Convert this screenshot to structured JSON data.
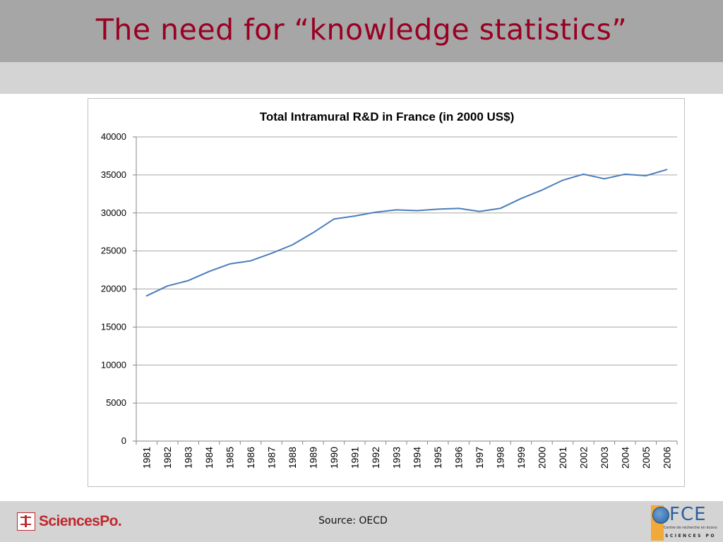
{
  "slide": {
    "title": "The need for “knowledge statistics”",
    "source": "Source: OECD"
  },
  "logos": {
    "sciencespo": "SciencesPo.",
    "ofce_letters": "FCE",
    "ofce_desc": "Centre de recherche en économie de",
    "ofce_sp": "SCIENCES PO"
  },
  "colors": {
    "title": "#990022",
    "line": "#4a7ebb",
    "brand_red": "#c0282d"
  },
  "chart_data": {
    "type": "line",
    "title": "Total Intramural R&D in France (in 2000 US$)",
    "xlabel": "",
    "ylabel": "",
    "ylim": [
      0,
      40000
    ],
    "yticks": [
      0,
      5000,
      10000,
      15000,
      20000,
      25000,
      30000,
      35000,
      40000
    ],
    "grid": true,
    "legend": "none",
    "categories": [
      "1981",
      "1982",
      "1983",
      "1984",
      "1985",
      "1986",
      "1987",
      "1988",
      "1989",
      "1990",
      "1991",
      "1992",
      "1993",
      "1994",
      "1995",
      "1996",
      "1997",
      "1998",
      "1999",
      "2000",
      "2001",
      "2002",
      "2003",
      "2004",
      "2005",
      "2006"
    ],
    "series": [
      {
        "values": [
          19100,
          20400,
          21100,
          22300,
          23300,
          23700,
          24700,
          25800,
          27400,
          29200,
          29600,
          30100,
          30400,
          30300,
          30500,
          30600,
          30200,
          30600,
          31900,
          33000,
          34300,
          35100,
          34500,
          35100,
          34900,
          35700
        ]
      }
    ]
  }
}
